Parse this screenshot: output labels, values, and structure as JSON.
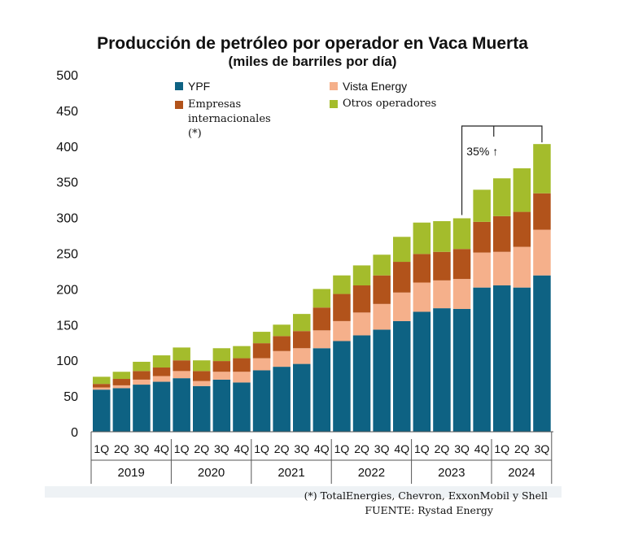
{
  "title": "Producción de petróleo por operador en Vaca Muerta",
  "subtitle": "(miles de barriles por día)",
  "legend": [
    {
      "label": "YPF",
      "color": "#0e6283"
    },
    {
      "label": "Vista Energy",
      "color": "#f5b08b"
    },
    {
      "label": "Empresas\ninternacionales (*)",
      "color": "#b2531b"
    },
    {
      "label": "Otros operadores",
      "color": "#a4bc2c"
    }
  ],
  "annotation": "35% ↑",
  "footnote": "(*) TotalEnergies, Chevron, ExxonMobil y Shell",
  "source": "FUENTE: Rystad Energy",
  "chart_data": {
    "type": "bar",
    "stacked": true,
    "title": "Producción de petróleo por operador en Vaca Muerta",
    "ylabel": "miles de barriles por día",
    "ylim": [
      0,
      500
    ],
    "yticks": [
      0,
      50,
      100,
      150,
      200,
      250,
      300,
      350,
      400,
      450,
      500
    ],
    "categories": [
      "1Q",
      "2Q",
      "3Q",
      "4Q",
      "1Q",
      "2Q",
      "3Q",
      "4Q",
      "1Q",
      "2Q",
      "3Q",
      "4Q",
      "1Q",
      "2Q",
      "3Q",
      "4Q",
      "1Q",
      "2Q",
      "3Q",
      "4Q",
      "1Q",
      "2Q",
      "3Q"
    ],
    "years": [
      {
        "label": "2019",
        "count": 4
      },
      {
        "label": "2020",
        "count": 4
      },
      {
        "label": "2021",
        "count": 4
      },
      {
        "label": "2022",
        "count": 4
      },
      {
        "label": "2023",
        "count": 4
      },
      {
        "label": "2024",
        "count": 3
      }
    ],
    "series": [
      {
        "name": "YPF",
        "color": "#0e6283",
        "values": [
          59,
          61,
          66,
          70,
          75,
          64,
          73,
          69,
          86,
          91,
          95,
          117,
          127,
          135,
          143,
          155,
          168,
          173,
          172,
          202,
          205,
          202,
          219
        ]
      },
      {
        "name": "Vista Energy",
        "color": "#f5b08b",
        "values": [
          3,
          4,
          7,
          8,
          10,
          7,
          11,
          15,
          17,
          22,
          22,
          25,
          28,
          32,
          36,
          40,
          41,
          39,
          42,
          49,
          47,
          57,
          64
        ]
      },
      {
        "name": "Empresas internacionales (*)",
        "color": "#b2531b",
        "values": [
          5,
          9,
          12,
          12,
          15,
          14,
          15,
          19,
          21,
          21,
          24,
          32,
          38,
          38,
          40,
          43,
          40,
          40,
          42,
          43,
          50,
          49,
          51
        ]
      },
      {
        "name": "Otros operadores",
        "color": "#a4bc2c",
        "values": [
          10,
          10,
          13,
          17,
          18,
          15,
          18,
          17,
          16,
          16,
          24,
          26,
          26,
          28,
          29,
          35,
          44,
          43,
          43,
          45,
          53,
          61,
          69
        ]
      }
    ],
    "bracket": {
      "from_index": 18,
      "to_index": 22,
      "label": "35% ↑"
    }
  }
}
